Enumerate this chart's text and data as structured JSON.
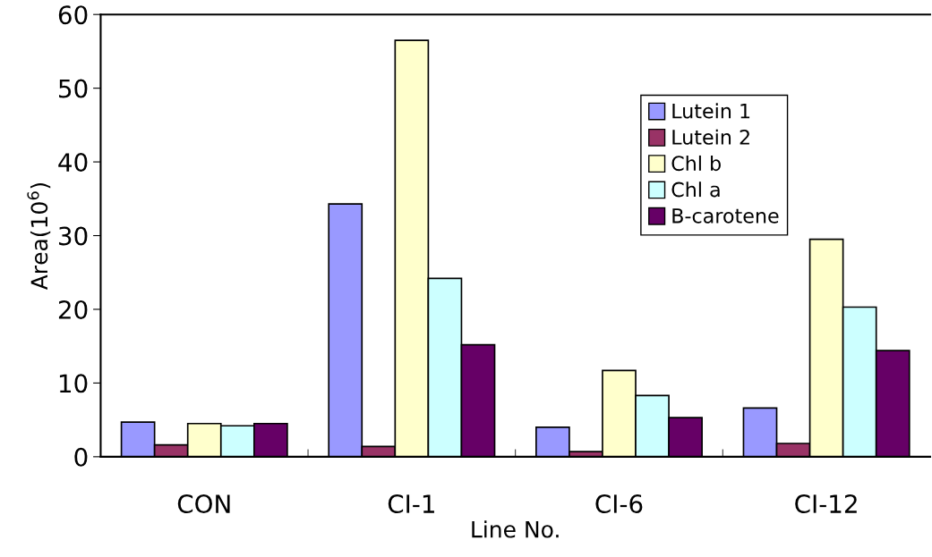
{
  "chart_data": {
    "type": "bar",
    "xlabel": "Line No.",
    "ylabel": "Area(10$^{6}$)",
    "categories": [
      "CON",
      "CI-1",
      "CI-6",
      "CI-12"
    ],
    "series": [
      {
        "name": "Lutein 1",
        "color": "#9999ff",
        "values": [
          4.7,
          34.3,
          4.0,
          6.6
        ]
      },
      {
        "name": "Lutein 2",
        "color": "#993366",
        "values": [
          1.6,
          1.4,
          0.7,
          1.8
        ]
      },
      {
        "name": "Chl b",
        "color": "#ffffcc",
        "values": [
          4.5,
          56.5,
          11.7,
          29.5
        ]
      },
      {
        "name": "Chl a",
        "color": "#ccffff",
        "values": [
          4.2,
          24.2,
          8.3,
          20.3
        ]
      },
      {
        "name": "B-carotene",
        "color": "#660066",
        "values": [
          4.5,
          15.2,
          5.3,
          14.4
        ]
      }
    ],
    "ylim": [
      0,
      60
    ],
    "yticks": [
      0,
      10,
      20,
      30,
      40,
      50,
      60
    ],
    "grid": false,
    "legend": "top right"
  }
}
